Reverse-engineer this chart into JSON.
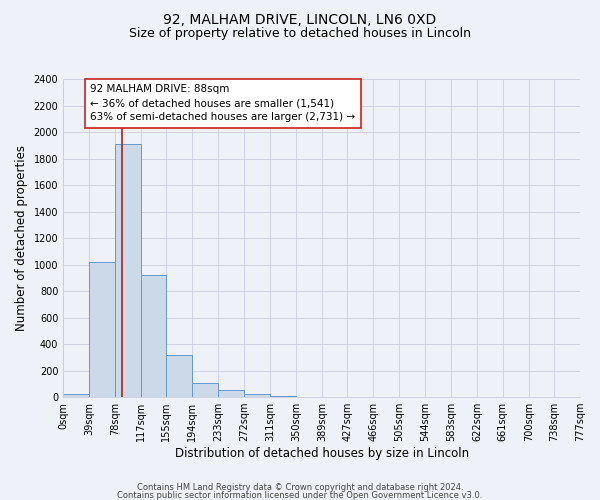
{
  "title_line1": "92, MALHAM DRIVE, LINCOLN, LN6 0XD",
  "title_line2": "Size of property relative to detached houses in Lincoln",
  "xlabel": "Distribution of detached houses by size in Lincoln",
  "ylabel": "Number of detached properties",
  "bin_edges": [
    0,
    39,
    78,
    117,
    155,
    194,
    233,
    272,
    311,
    350,
    389,
    427,
    466,
    505,
    544,
    583,
    622,
    661,
    700,
    738,
    777
  ],
  "bin_labels": [
    "0sqm",
    "39sqm",
    "78sqm",
    "117sqm",
    "155sqm",
    "194sqm",
    "233sqm",
    "272sqm",
    "311sqm",
    "350sqm",
    "389sqm",
    "427sqm",
    "466sqm",
    "505sqm",
    "544sqm",
    "583sqm",
    "622sqm",
    "661sqm",
    "700sqm",
    "738sqm",
    "777sqm"
  ],
  "bar_heights": [
    20,
    1020,
    1910,
    920,
    315,
    105,
    50,
    25,
    10,
    0,
    0,
    0,
    0,
    0,
    0,
    0,
    0,
    0,
    0,
    0
  ],
  "bar_color": "#ccd9e8",
  "bar_edge_color": "#6699cc",
  "property_value": 88,
  "vline_color": "#aa2222",
  "ylim": [
    0,
    2400
  ],
  "yticks": [
    0,
    200,
    400,
    600,
    800,
    1000,
    1200,
    1400,
    1600,
    1800,
    2000,
    2200,
    2400
  ],
  "annotation_title": "92 MALHAM DRIVE: 88sqm",
  "annotation_line1": "← 36% of detached houses are smaller (1,541)",
  "annotation_line2": "63% of semi-detached houses are larger (2,731) →",
  "annotation_box_color": "#ffffff",
  "annotation_box_edge": "#cc2222",
  "footer_line1": "Contains HM Land Registry data © Crown copyright and database right 2024.",
  "footer_line2": "Contains public sector information licensed under the Open Government Licence v3.0.",
  "background_color": "#eef2f8",
  "grid_color": "#ccccdd",
  "title_fontsize": 10,
  "subtitle_fontsize": 9,
  "axis_label_fontsize": 8.5,
  "tick_fontsize": 7,
  "footer_fontsize": 6,
  "ann_fontsize": 7.5
}
